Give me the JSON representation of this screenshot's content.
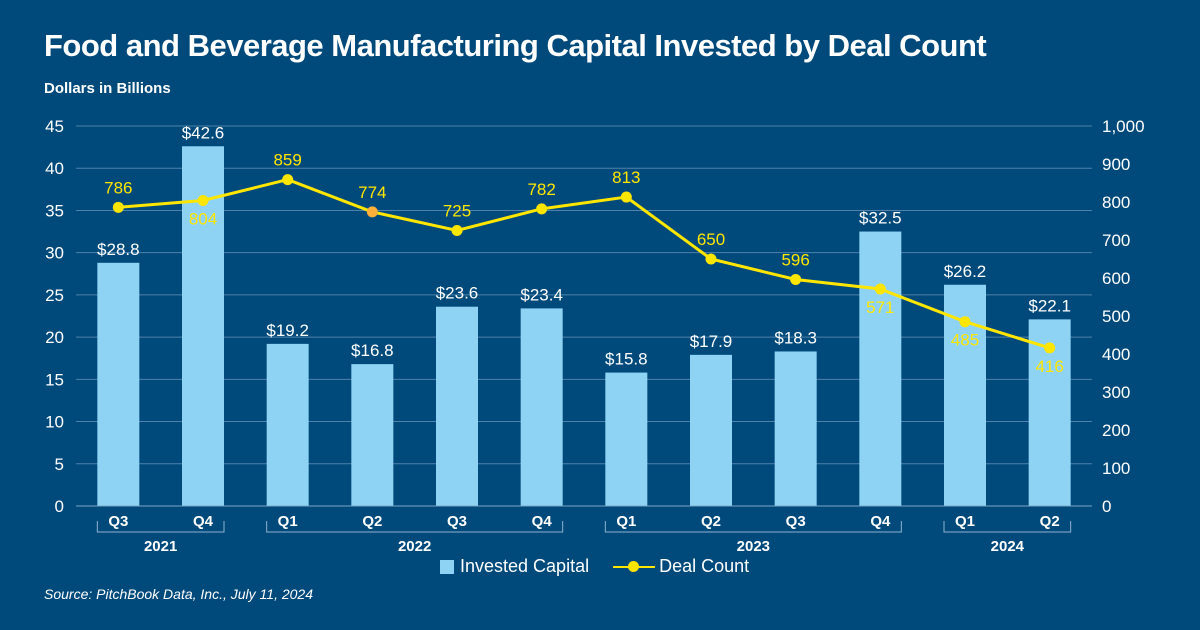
{
  "chart_data": {
    "type": "bar+line",
    "title": "Food and Beverage Manufacturing Capital Invested by Deal Count",
    "subtitle": "Dollars in Billions",
    "source": "Source: PitchBook Data, Inc., July 11, 2024",
    "categories": [
      "Q3",
      "Q4",
      "Q1",
      "Q2",
      "Q3",
      "Q4",
      "Q1",
      "Q2",
      "Q3",
      "Q4",
      "Q1",
      "Q2"
    ],
    "year_groups": [
      {
        "label": "2021",
        "start": 0,
        "end": 1
      },
      {
        "label": "2022",
        "start": 2,
        "end": 5
      },
      {
        "label": "2023",
        "start": 6,
        "end": 9
      },
      {
        "label": "2024",
        "start": 10,
        "end": 11
      }
    ],
    "series": [
      {
        "name": "Invested Capital",
        "type": "bar",
        "axis": "left",
        "values": [
          28.8,
          42.6,
          19.2,
          16.8,
          23.6,
          23.4,
          15.8,
          17.9,
          18.3,
          32.5,
          26.2,
          22.1
        ],
        "labels": [
          "$28.8",
          "$42.6",
          "$19.2",
          "$16.8",
          "$23.6",
          "$23.4",
          "$15.8",
          "$17.9",
          "$18.3",
          "$32.5",
          "$26.2",
          "$22.1"
        ],
        "color": "#8fd3f4"
      },
      {
        "name": "Deal Count",
        "type": "line",
        "axis": "right",
        "values": [
          786,
          804,
          859,
          774,
          725,
          782,
          813,
          650,
          596,
          571,
          485,
          416
        ],
        "labels": [
          "786",
          "804",
          "859",
          "774",
          "725",
          "782",
          "813",
          "650",
          "596",
          "571",
          "485",
          "416"
        ],
        "label_below": [
          false,
          true,
          false,
          false,
          false,
          false,
          false,
          false,
          false,
          true,
          true,
          true
        ],
        "color": "#ffe600",
        "highlight_index": 3,
        "highlight_color": "#fbb03b"
      }
    ],
    "left_axis": {
      "range": [
        0,
        45
      ],
      "ticks": [
        "0",
        "5",
        "10",
        "15",
        "20",
        "25",
        "30",
        "35",
        "40",
        "45"
      ]
    },
    "right_axis": {
      "range": [
        0,
        1000
      ],
      "ticks": [
        "0",
        "100",
        "200",
        "300",
        "400",
        "500",
        "600",
        "700",
        "800",
        "900",
        "1,000"
      ]
    },
    "grid": true,
    "legend_placement": "bottom"
  }
}
